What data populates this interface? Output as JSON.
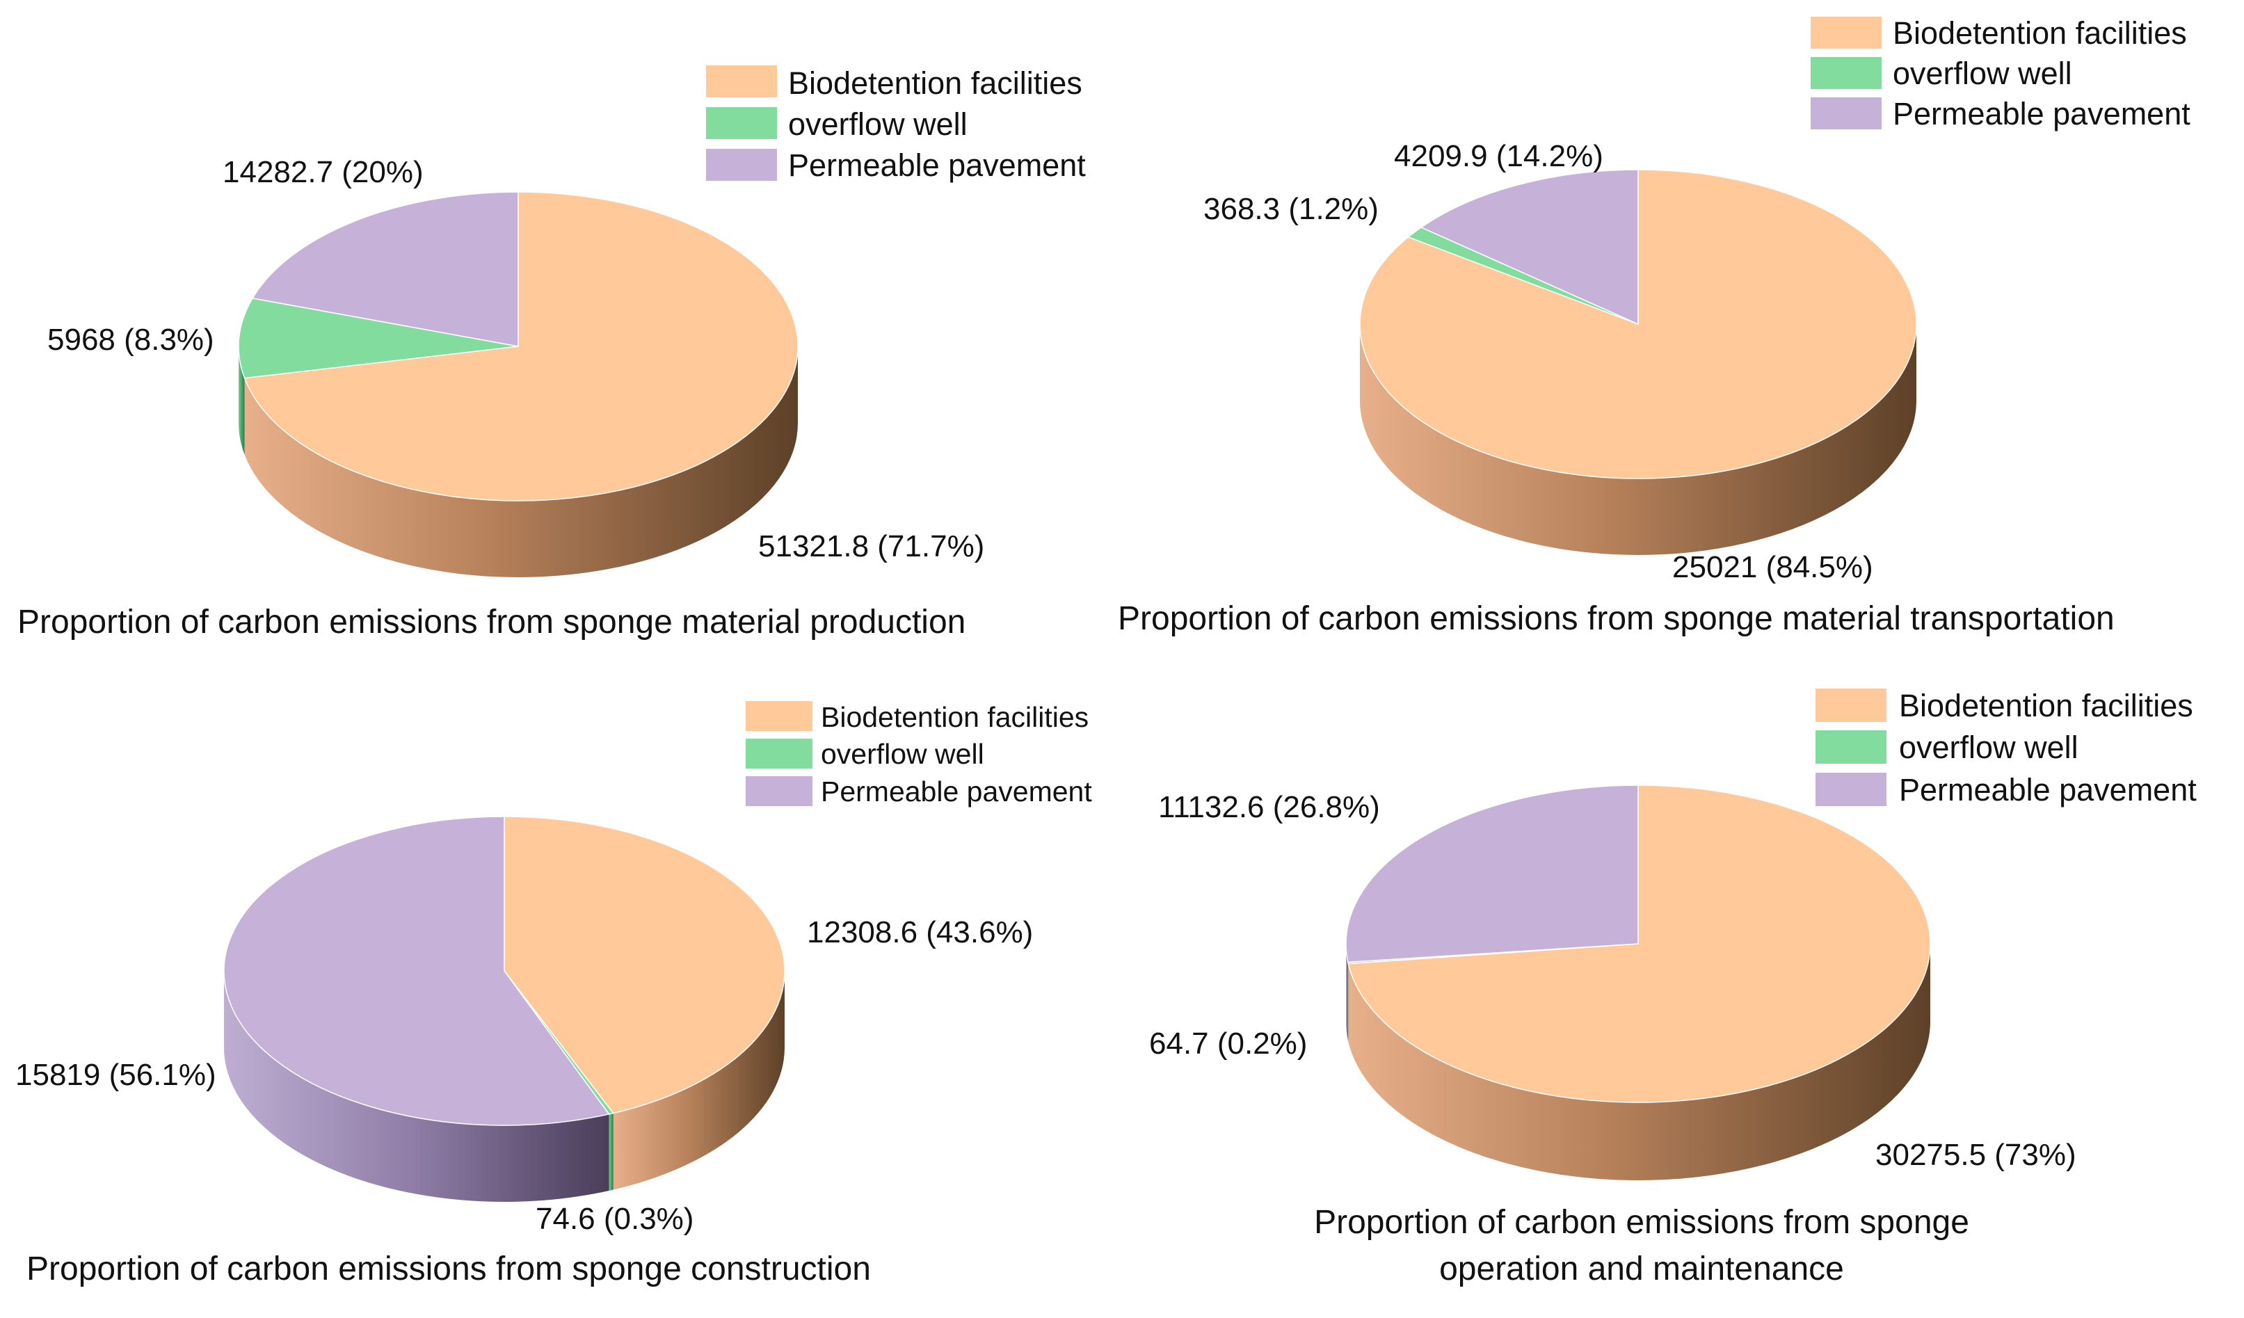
{
  "colors": {
    "biodetention": "#ffc99a",
    "overflow": "#82dc9e",
    "permeable": "#c6b2d8",
    "biodetention_side_light": "#e0a87e",
    "biodetention_side_dark": "#6b4a2d",
    "permeable_side_light": "#b09cc4",
    "permeable_side_dark": "#4d4060",
    "overflow_side": "#4fb06e"
  },
  "chart_data": [
    {
      "type": "pie",
      "title": "Proportion of carbon emissions from sponge material production",
      "legend": [
        "Biodetention facilities",
        "overflow well",
        "Permeable pavement"
      ],
      "slices": [
        {
          "name": "Biodetention facilities",
          "value": 51321.8,
          "percent": 71.7,
          "label": "51321.8 (71.7%)"
        },
        {
          "name": "overflow well",
          "value": 5968,
          "percent": 8.3,
          "label": "5968 (8.3%)"
        },
        {
          "name": "Permeable pavement",
          "value": 14282.7,
          "percent": 20,
          "label": "14282.7 (20%)"
        }
      ]
    },
    {
      "type": "pie",
      "title": "Proportion of carbon emissions from sponge material transportation",
      "legend": [
        "Biodetention facilities",
        "overflow well",
        "Permeable pavement"
      ],
      "slices": [
        {
          "name": "Biodetention facilities",
          "value": 25021,
          "percent": 84.5,
          "label": "25021 (84.5%)"
        },
        {
          "name": "overflow well",
          "value": 368.3,
          "percent": 1.2,
          "label": "368.3 (1.2%)"
        },
        {
          "name": "Permeable pavement",
          "value": 4209.9,
          "percent": 14.2,
          "label": "4209.9 (14.2%)"
        }
      ]
    },
    {
      "type": "pie",
      "title": "Proportion of carbon emissions from sponge construction",
      "legend": [
        "Biodetention facilities",
        "overflow well",
        "Permeable pavement"
      ],
      "slices": [
        {
          "name": "Biodetention facilities",
          "value": 12308.6,
          "percent": 43.6,
          "label": "12308.6 (43.6%)"
        },
        {
          "name": "overflow well",
          "value": 74.6,
          "percent": 0.3,
          "label": "74.6 (0.3%)"
        },
        {
          "name": "Permeable pavement",
          "value": 15819,
          "percent": 56.1,
          "label": "15819 (56.1%)"
        }
      ]
    },
    {
      "type": "pie",
      "title_lines": [
        "Proportion of carbon emissions from sponge",
        "operation and maintenance"
      ],
      "legend": [
        "Biodetention facilities",
        "overflow well",
        "Permeable pavement"
      ],
      "slices": [
        {
          "name": "Biodetention facilities",
          "value": 30275.5,
          "percent": 73,
          "label": "30275.5 (73%)"
        },
        {
          "name": "overflow well",
          "value": 64.7,
          "percent": 0.2,
          "label": "64.7 (0.2%)"
        },
        {
          "name": "Permeable pavement",
          "value": 11132.6,
          "percent": 26.8,
          "label": "11132.6 (26.8%)"
        }
      ]
    }
  ]
}
